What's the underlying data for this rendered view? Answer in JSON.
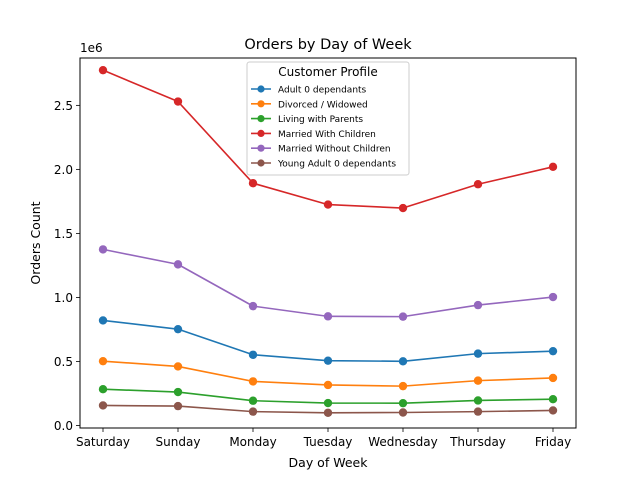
{
  "chart_data": {
    "type": "line",
    "title": "Orders by Day of Week",
    "xlabel": "Day of Week",
    "ylabel": "Orders Count",
    "y_offset_label": "1e6",
    "categories": [
      "Saturday",
      "Sunday",
      "Monday",
      "Tuesday",
      "Wednesday",
      "Thursday",
      "Friday"
    ],
    "ylim": [
      -20000,
      2870000
    ],
    "y_ticks": [
      0,
      500000,
      1000000,
      1500000,
      2000000,
      2500000
    ],
    "y_tick_labels": [
      "0.0",
      "0.5",
      "1.0",
      "1.5",
      "2.0",
      "2.5"
    ],
    "grid": false,
    "legend": {
      "title": "Customer Profile",
      "placement": "upper-center"
    },
    "series": [
      {
        "name": "Adult 0 dependants",
        "color": "#1f77b4",
        "values": [
          820000,
          752000,
          552000,
          506000,
          501000,
          561000,
          580000
        ]
      },
      {
        "name": "Divorced / Widowed",
        "color": "#ff7f0e",
        "values": [
          502000,
          461000,
          344000,
          316000,
          307000,
          350000,
          371000
        ]
      },
      {
        "name": "Living with Parents",
        "color": "#2ca02c",
        "values": [
          283000,
          261000,
          193000,
          175000,
          174000,
          195000,
          205000
        ]
      },
      {
        "name": "Married With Children",
        "color": "#d62728",
        "values": [
          2775000,
          2530000,
          1892000,
          1725000,
          1698000,
          1884000,
          2020000
        ]
      },
      {
        "name": "Married Without Children",
        "color": "#9467bd",
        "values": [
          1375000,
          1258000,
          932000,
          852000,
          850000,
          940000,
          1003000
        ]
      },
      {
        "name": "Young Adult 0 dependants",
        "color": "#8c564b",
        "values": [
          156000,
          151000,
          108000,
          99000,
          101000,
          108000,
          117000
        ]
      }
    ]
  }
}
